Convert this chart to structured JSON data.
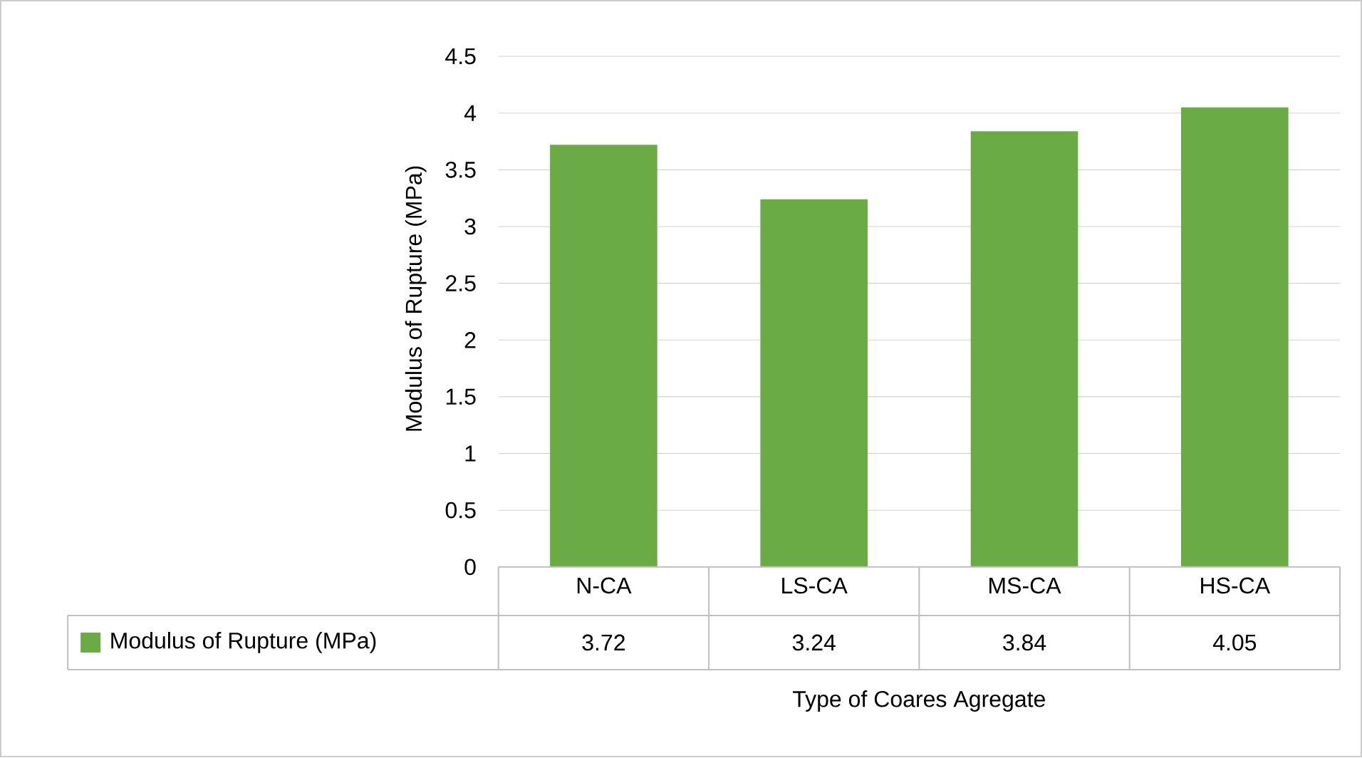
{
  "chart_data": {
    "type": "bar",
    "xlabel": "Type of Coares Agregate",
    "ylabel": "Modulus of Rupture (MPa)",
    "categories": [
      "N-CA",
      "LS-CA",
      "MS-CA",
      "HS-CA"
    ],
    "series": [
      {
        "name": "Modulus of Rupture (MPa)",
        "color": "#6aab45",
        "values": [
          3.72,
          3.24,
          3.84,
          4.05
        ]
      }
    ],
    "ylim": [
      0,
      4.5
    ],
    "yticks": [
      0,
      0.5,
      1,
      1.5,
      2,
      2.5,
      3,
      3.5,
      4,
      4.5
    ],
    "grid": "y",
    "legend": "bottom left",
    "data_labels": true
  }
}
